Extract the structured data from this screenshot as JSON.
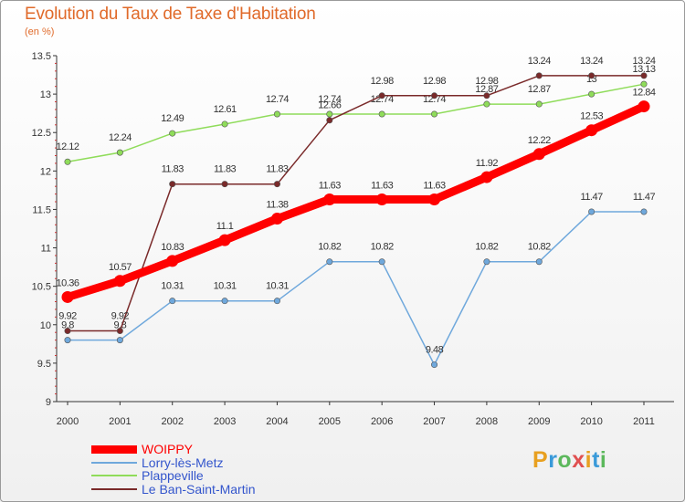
{
  "chart_data": {
    "type": "line",
    "title": "Evolution du Taux de Taxe d'Habitation",
    "ylabel": "(en %)",
    "x": [
      "2000",
      "2001",
      "2002",
      "2003",
      "2004",
      "2005",
      "2006",
      "2007",
      "2008",
      "2009",
      "2010",
      "2011"
    ],
    "ylim": [
      9,
      13.5
    ],
    "yticks": [
      "9",
      "9.5",
      "10",
      "10.5",
      "11",
      "11.5",
      "12",
      "12.5",
      "13",
      "13.5"
    ],
    "grid": false,
    "legend_position": "bottom-left",
    "series": [
      {
        "name": "WOIPPY",
        "color": "#ff0000",
        "values": [
          10.36,
          10.57,
          10.83,
          11.1,
          11.38,
          11.63,
          11.63,
          11.63,
          11.92,
          12.22,
          12.53,
          12.84
        ],
        "labels": [
          "10.36",
          "10.57",
          "10.83",
          "11.1",
          "11.38",
          "11.63",
          "11.63",
          "11.63",
          "11.92",
          "12.22",
          "12.53",
          "12.84"
        ]
      },
      {
        "name": "Lorry-lès-Metz",
        "color": "#6fa8dc",
        "values": [
          9.8,
          9.8,
          10.31,
          10.31,
          10.31,
          10.82,
          10.82,
          9.48,
          10.82,
          10.82,
          11.47,
          11.47
        ],
        "labels": [
          "9.8",
          "9.8",
          "10.31",
          "10.31",
          "10.31",
          "10.82",
          "10.82",
          "9.48",
          "10.82",
          "10.82",
          "11.47",
          "11.47"
        ]
      },
      {
        "name": "Plappeville",
        "color": "#8fdc5a",
        "values": [
          12.12,
          12.24,
          12.49,
          12.61,
          12.74,
          12.74,
          12.74,
          12.74,
          12.87,
          12.87,
          13,
          13.13
        ],
        "labels": [
          "12.12",
          "12.24",
          "12.49",
          "12.61",
          "12.74",
          "12.74",
          "12.74",
          "12.74",
          "12.87",
          "12.87",
          "13",
          "13.13"
        ]
      },
      {
        "name": "Le Ban-Saint-Martin",
        "color": "#7a2a2a",
        "values": [
          9.92,
          9.92,
          11.83,
          11.83,
          11.83,
          12.66,
          12.98,
          12.98,
          12.98,
          13.24,
          13.24,
          13.24
        ],
        "labels": [
          "9.92",
          "9.92",
          "11.83",
          "11.83",
          "11.83",
          "12.66",
          "12.98",
          "12.98",
          "12.98",
          "13.24",
          "13.24",
          "13.24"
        ]
      }
    ]
  },
  "logo": {
    "letters": [
      "P",
      "r",
      "o",
      "x",
      "i",
      "t",
      "i"
    ],
    "colors": [
      "#e8a020",
      "#3a9ad9",
      "#5cb85c",
      "#e05050",
      "#e8a020",
      "#3a9ad9",
      "#5cb85c"
    ]
  }
}
